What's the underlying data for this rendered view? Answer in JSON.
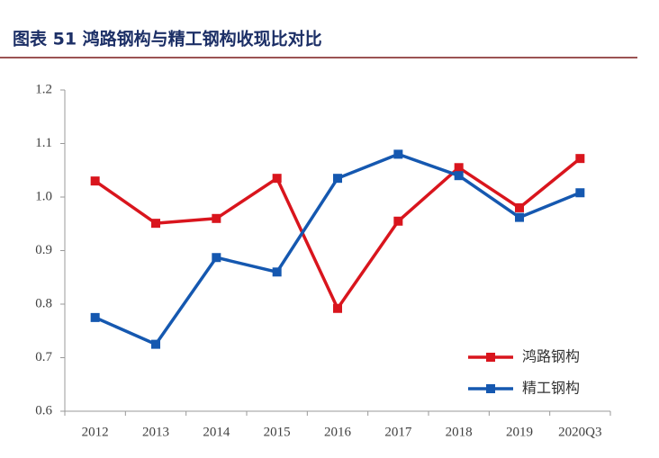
{
  "chart_data": {
    "type": "line",
    "title": "图表 51  鸿路钢构与精工钢构收现比对比",
    "categories": [
      "2012",
      "2013",
      "2014",
      "2015",
      "2016",
      "2017",
      "2018",
      "2019",
      "2020Q3"
    ],
    "series": [
      {
        "name": "鸿路钢构",
        "color": "#d9151d",
        "values": [
          1.03,
          0.951,
          0.96,
          1.035,
          0.792,
          0.955,
          1.055,
          0.98,
          1.072
        ]
      },
      {
        "name": "精工钢构",
        "color": "#1558b0",
        "values": [
          0.775,
          0.725,
          0.887,
          0.86,
          1.035,
          1.08,
          1.04,
          0.962,
          1.008
        ]
      }
    ],
    "ylim": [
      0.6,
      1.2
    ],
    "yticks": [
      0.6,
      0.7,
      0.8,
      0.9,
      {
        "value": 1,
        "label": "1.0"
      },
      1.1,
      1.2
    ],
    "grid": false,
    "legend": "lower right"
  }
}
